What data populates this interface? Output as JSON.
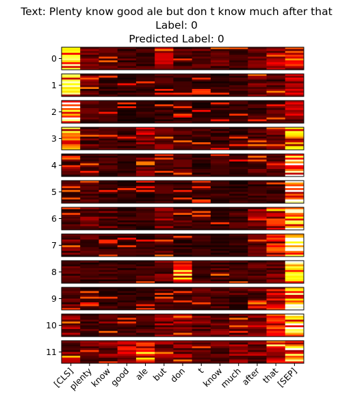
{
  "chart_data": {
    "type": "heatmap",
    "title_lines": [
      "Text: Plenty know good ale but don t know much after that",
      "Label: 0",
      "Predicted Label: 0"
    ],
    "colormap": "hot",
    "x_tick_labels": [
      "[CLS]",
      "plenty",
      "know",
      "good",
      "ale",
      "but",
      "don",
      "t",
      "know",
      "much",
      "after",
      "that",
      "[SEP]"
    ],
    "layers": [
      {
        "label": "0",
        "column_intensity": [
          0.85,
          0.2,
          0.18,
          0.15,
          0.15,
          0.35,
          0.15,
          0.18,
          0.18,
          0.12,
          0.2,
          0.35,
          0.5
        ]
      },
      {
        "label": "1",
        "column_intensity": [
          0.8,
          0.2,
          0.12,
          0.1,
          0.12,
          0.12,
          0.1,
          0.1,
          0.1,
          0.12,
          0.2,
          0.18,
          0.3
        ]
      },
      {
        "label": "2",
        "column_intensity": [
          0.95,
          0.15,
          0.1,
          0.08,
          0.1,
          0.12,
          0.12,
          0.08,
          0.1,
          0.1,
          0.15,
          0.15,
          0.3
        ]
      },
      {
        "label": "3",
        "column_intensity": [
          0.7,
          0.18,
          0.15,
          0.12,
          0.4,
          0.2,
          0.15,
          0.12,
          0.12,
          0.12,
          0.18,
          0.2,
          0.7
        ]
      },
      {
        "label": "4",
        "column_intensity": [
          0.2,
          0.15,
          0.12,
          0.1,
          0.2,
          0.12,
          0.15,
          0.1,
          0.12,
          0.1,
          0.15,
          0.2,
          0.95
        ]
      },
      {
        "label": "5",
        "column_intensity": [
          0.15,
          0.15,
          0.1,
          0.1,
          0.1,
          0.12,
          0.1,
          0.12,
          0.12,
          0.1,
          0.12,
          0.12,
          0.9
        ]
      },
      {
        "label": "6",
        "column_intensity": [
          0.15,
          0.2,
          0.18,
          0.12,
          0.12,
          0.25,
          0.15,
          0.12,
          0.12,
          0.15,
          0.25,
          0.45,
          0.9
        ]
      },
      {
        "label": "7",
        "column_intensity": [
          0.2,
          0.15,
          0.12,
          0.1,
          0.1,
          0.15,
          0.1,
          0.1,
          0.1,
          0.1,
          0.15,
          0.45,
          0.95
        ]
      },
      {
        "label": "8",
        "column_intensity": [
          0.15,
          0.12,
          0.12,
          0.1,
          0.15,
          0.2,
          0.4,
          0.15,
          0.15,
          0.12,
          0.15,
          0.2,
          0.9
        ]
      },
      {
        "label": "9",
        "column_intensity": [
          0.18,
          0.12,
          0.12,
          0.1,
          0.12,
          0.15,
          0.12,
          0.15,
          0.15,
          0.15,
          0.2,
          0.4,
          0.9
        ]
      },
      {
        "label": "10",
        "column_intensity": [
          0.25,
          0.15,
          0.2,
          0.15,
          0.15,
          0.25,
          0.3,
          0.2,
          0.2,
          0.2,
          0.3,
          0.45,
          0.85
        ]
      },
      {
        "label": "11",
        "column_intensity": [
          0.25,
          0.2,
          0.25,
          0.35,
          0.4,
          0.25,
          0.25,
          0.15,
          0.2,
          0.25,
          0.25,
          0.45,
          0.75
        ]
      }
    ]
  }
}
